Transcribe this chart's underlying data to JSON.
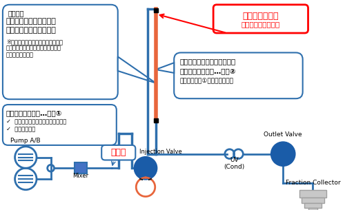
{
  "bg_color": "#ffffff",
  "blue": "#2e6fad",
  "blue_dark": "#1a5ca8",
  "orange": "#e8663c",
  "red": "#ff0000",
  "gray": "#808080",
  "light_gray": "#c8c8c8",
  "mid_gray": "#a0a0a0",
  "box1_line1": "（準備）",
  "box1_line2": "カラムの代わりにダミー",
  "box1_line3": "チュービングを接続する",
  "box1_small1": "※ダミーチュービングで発生する初",
  "box1_small2": "力はゼロとして計算するため詰まり",
  "box1_small3": "の無いものを使用",
  "box2_line1": "このポイントで配管を外した",
  "box2_line2": "ときの圧力を計測…圧力②",
  "box2_small": "（条件は圧力①測定時と同じ）",
  "box3_line1": "圧計測ポイント",
  "box3_line2": "（＝カラム上流圧）",
  "box4_line1": "システム圧を測定…圧力①",
  "box4_b1": "✓  流速；使いたいカラムの最高流速",
  "box4_b2": "✓  溶液；超純水",
  "lbl_pump": "Pump A/B",
  "lbl_pressure": "圧力計",
  "lbl_mixer": "Mixer",
  "lbl_injection": "Injection Valve",
  "lbl_uv": "UV",
  "lbl_cond": "(Cond)",
  "lbl_outlet": "Outlet Valve",
  "lbl_fraction": "Fraction Collector"
}
